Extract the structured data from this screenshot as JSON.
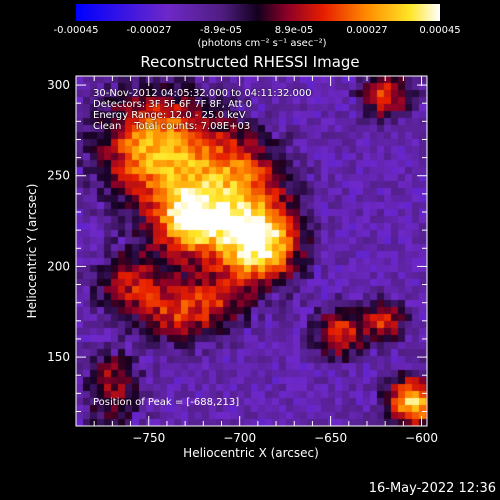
{
  "colorbar": {
    "ticks": [
      "-0.00045",
      "-0.00027",
      "-8.9e-05",
      "8.9e-05",
      "0.00027",
      "0.00045"
    ],
    "unit_label": "(photons cm⁻² s⁻¹ asec⁻²)",
    "range": [
      -0.00045,
      0.00045
    ]
  },
  "chart_data": {
    "type": "heatmap",
    "title": "Reconstructed RHESSI Image",
    "xlabel": "Heliocentric X (arcsec)",
    "ylabel": "Heliocentric Y (arcsec)",
    "xlim": [
      -790,
      -597
    ],
    "ylim": [
      112,
      305
    ],
    "xticks": [
      -750,
      -700,
      -650,
      -600
    ],
    "yticks": [
      150,
      200,
      250,
      300
    ],
    "xtick_labels": [
      "−750",
      "−700",
      "−650",
      "−600"
    ],
    "ytick_labels": [
      "150",
      "200",
      "250",
      "300"
    ],
    "colormap": "rainbow-blue-to-white",
    "background_color": "#3b1a8a",
    "blobs": [
      {
        "x": -690,
        "y": 213,
        "strength": 1.0,
        "sigma": 16
      },
      {
        "x": -727,
        "y": 225,
        "strength": 0.85,
        "sigma": 14
      },
      {
        "x": -745,
        "y": 265,
        "strength": 0.8,
        "sigma": 22
      },
      {
        "x": -700,
        "y": 250,
        "strength": 0.55,
        "sigma": 18
      },
      {
        "x": -760,
        "y": 190,
        "strength": 0.45,
        "sigma": 14
      },
      {
        "x": -735,
        "y": 175,
        "strength": 0.45,
        "sigma": 12
      },
      {
        "x": -712,
        "y": 180,
        "strength": 0.4,
        "sigma": 12
      },
      {
        "x": -645,
        "y": 163,
        "strength": 0.55,
        "sigma": 10
      },
      {
        "x": -620,
        "y": 170,
        "strength": 0.5,
        "sigma": 8
      },
      {
        "x": -605,
        "y": 125,
        "strength": 0.85,
        "sigma": 10
      },
      {
        "x": -620,
        "y": 295,
        "strength": 0.55,
        "sigma": 10
      },
      {
        "x": -770,
        "y": 140,
        "strength": 0.35,
        "sigma": 10
      },
      {
        "x": -770,
        "y": 120,
        "strength": 0.25,
        "sigma": 12
      }
    ],
    "peak": [
      -688,
      213
    ]
  },
  "info": {
    "time_range": "30-Nov-2012 04:05:32.000 to 04:11:32.000",
    "detectors": "Detectors: 3F 5F 6F 7F 8F, Att 0",
    "energy_range": "Energy Range: 12.0 - 25.0 keV",
    "method": "Clean    Total counts: 7.08E+03",
    "peak_position": "Position of Peak = [-688,213]"
  },
  "timestamp": "16-May-2022 12:36"
}
